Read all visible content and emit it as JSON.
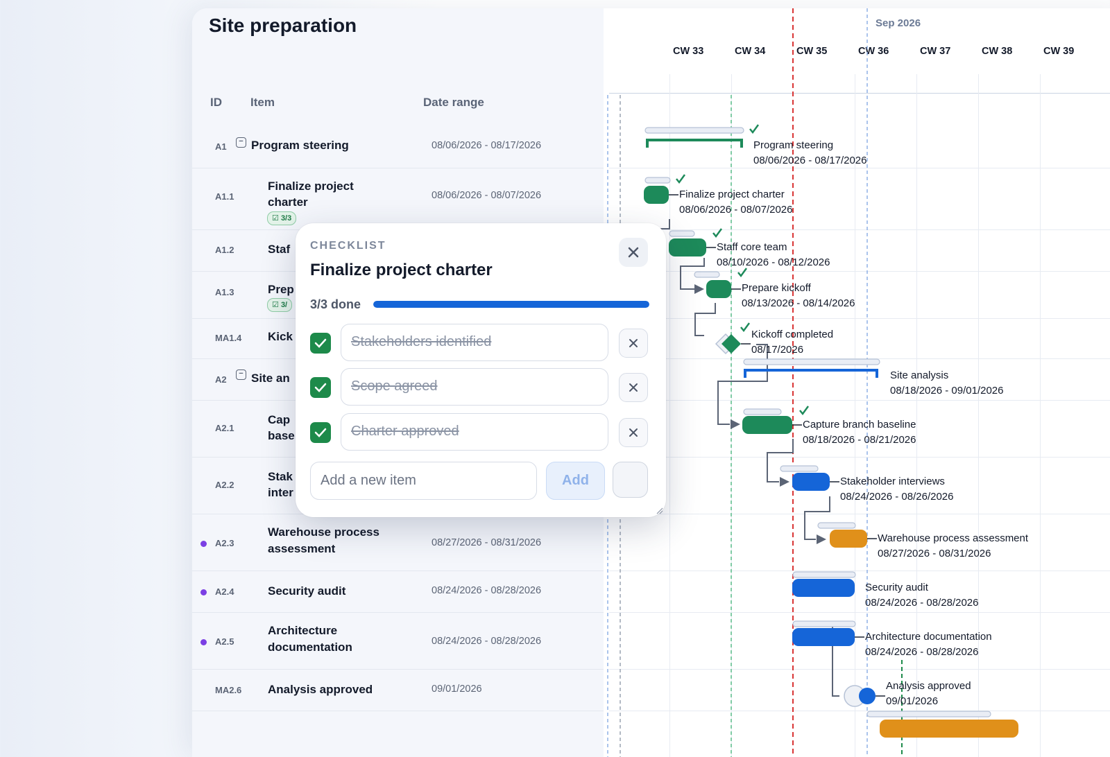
{
  "page": {
    "title": "Site preparation"
  },
  "grid": {
    "headers": {
      "id": "ID",
      "item": "Item",
      "date_range": "Date range"
    },
    "rows": [
      {
        "id": "A1",
        "name": "Program steering",
        "dates": "08/06/2026 - 08/17/2026"
      },
      {
        "id": "A1.1",
        "name": "Finalize project charter",
        "name_line1": "Finalize project",
        "name_line2": "charter",
        "dates": "08/06/2026 - 08/07/2026",
        "badge": "3/3"
      },
      {
        "id": "A1.2",
        "name": "Staf"
      },
      {
        "id": "A1.3",
        "name": "Prep",
        "badge": "3/"
      },
      {
        "id": "MA1.4",
        "name": "Kick"
      },
      {
        "id": "A2",
        "name": "Site an"
      },
      {
        "id": "A2.1",
        "name_line1": "Cap",
        "name_line2": "base"
      },
      {
        "id": "A2.2",
        "name_line1": "Stak",
        "name_line2": "inter"
      },
      {
        "id": "A2.3",
        "name_line1": "Warehouse process",
        "name_line2": "assessment",
        "dates": "08/27/2026 - 08/31/2026"
      },
      {
        "id": "A2.4",
        "name": "Security audit",
        "dates": "08/24/2026 - 08/28/2026"
      },
      {
        "id": "A2.5",
        "name_line1": "Architecture",
        "name_line2": "documentation",
        "dates": "08/24/2026 - 08/28/2026"
      },
      {
        "id": "MA2.6",
        "name": "Analysis approved",
        "dates": "09/01/2026"
      }
    ]
  },
  "timeline": {
    "month": "Sep 2026",
    "weeks": [
      "CW 33",
      "CW 34",
      "CW 35",
      "CW 36",
      "CW 37",
      "CW 38",
      "CW 39"
    ],
    "tasks": [
      {
        "name": "Program steering",
        "dates": "08/06/2026 - 08/17/2026"
      },
      {
        "name": "Finalize project charter",
        "dates": "08/06/2026 - 08/07/2026"
      },
      {
        "name": "Staff core team",
        "dates": "08/10/2026 - 08/12/2026"
      },
      {
        "name": "Prepare kickoff",
        "dates": "08/13/2026 - 08/14/2026"
      },
      {
        "name": "Kickoff completed",
        "dates": "08/17/2026"
      },
      {
        "name": "Site analysis",
        "dates": "08/18/2026 - 09/01/2026"
      },
      {
        "name": "Capture branch baseline",
        "dates": "08/18/2026 - 08/21/2026"
      },
      {
        "name": "Stakeholder interviews",
        "dates": "08/24/2026 - 08/26/2026"
      },
      {
        "name": "Warehouse process assessment",
        "dates": "08/27/2026 - 08/31/2026"
      },
      {
        "name": "Security audit",
        "dates": "08/24/2026 - 08/28/2026"
      },
      {
        "name": "Architecture documentation",
        "dates": "08/24/2026 - 08/28/2026"
      },
      {
        "name": "Analysis approved",
        "dates": "09/01/2026"
      }
    ],
    "colors": {
      "green": "#1d8a5a",
      "blue": "#1565d8",
      "orange": "#e0901a",
      "today_line": "#d93535"
    }
  },
  "checklist": {
    "kicker": "CHECKLIST",
    "title": "Finalize project charter",
    "progress_label": "3/3 done",
    "progress": 1.0,
    "items": [
      {
        "text": "Stakeholders identified",
        "checked": true
      },
      {
        "text": "Scope agreed",
        "checked": true
      },
      {
        "text": "Charter approved",
        "checked": true
      }
    ],
    "new_item_placeholder": "Add a new item",
    "add_label": "Add"
  }
}
